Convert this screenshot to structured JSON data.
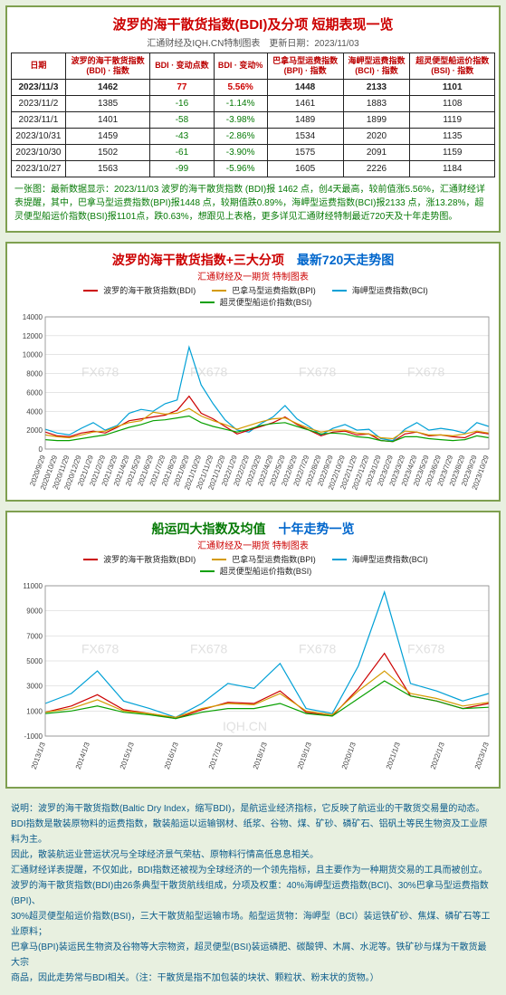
{
  "title_main": "波罗的海干散货指数(BDI)及分项 短期表现一览",
  "subtitle": "汇通财经及IQH.CN特制图表　更新日期：",
  "update_date": "2023/11/03",
  "table": {
    "headers": [
      "日期",
      "波罗的海干散货指数\n(BDI) · 指数",
      "BDI · 变动点数",
      "BDI · 变动%",
      "巴拿马型运费指数\n(BPI) · 指数",
      "海岬型运费指数\n(BCI) · 指数",
      "超灵便型船运价指数\n(BSI) · 指数"
    ],
    "rows": [
      {
        "cells": [
          "2023/11/3",
          "1462",
          "77",
          "5.56%",
          "1448",
          "2133",
          "1101"
        ],
        "bold": true,
        "delta_positive": true
      },
      {
        "cells": [
          "2023/11/2",
          "1385",
          "-16",
          "-1.14%",
          "1461",
          "1883",
          "1108"
        ]
      },
      {
        "cells": [
          "2023/11/1",
          "1401",
          "-58",
          "-3.98%",
          "1489",
          "1899",
          "1119"
        ]
      },
      {
        "cells": [
          "2023/10/31",
          "1459",
          "-43",
          "-2.86%",
          "1534",
          "2020",
          "1135"
        ]
      },
      {
        "cells": [
          "2023/10/30",
          "1502",
          "-61",
          "-3.90%",
          "1575",
          "2091",
          "1159"
        ]
      },
      {
        "cells": [
          "2023/10/27",
          "1563",
          "-99",
          "-5.96%",
          "1605",
          "2226",
          "1184"
        ]
      }
    ]
  },
  "note_text": "一张图：最新数据显示：2023/11/03 波罗的海干散货指数 (BDI)报 1462 点，创4天最高，较前值涨5.56%，汇通财经详表提醒，其中，巴拿马型运费指数(BPI)报1448 点，较期值跌0.89%，海岬型运费指数(BCI)报2133 点，涨13.28%，超灵便型船运价指数(BSI)报1101点，跌0.63%，想跟见上表格，更多详见汇通财经特制最近720天及十年走势图。",
  "chart720": {
    "title_a": "波罗的海干散货指数+三大分项",
    "title_b": "最新720天走势图",
    "sub": "汇通财经及一期货 特制图表",
    "ylim": [
      0,
      14000
    ],
    "ytick_step": 2000,
    "colors": {
      "bdi": "#cc0000",
      "bpi": "#d49a00",
      "bci": "#00a0d6",
      "bsi": "#08a000"
    },
    "series_names": {
      "bdi": "波罗的海干散货指数(BDI)",
      "bpi": "巴拿马型运费指数(BPI)",
      "bci": "海岬型运费指数(BCI)",
      "bsi": "超灵便型船运价指数(BSI)"
    },
    "xlabels": [
      "2020/9/29",
      "2020/10/29",
      "2020/11/29",
      "2020/12/29",
      "2021/1/29",
      "2021/2/29",
      "2021/3/29",
      "2021/4/29",
      "2021/5/29",
      "2021/6/29",
      "2021/7/29",
      "2021/8/29",
      "2021/9/29",
      "2021/10/29",
      "2021/11/29",
      "2021/12/29",
      "2022/1/29",
      "2022/2/29",
      "2022/3/29",
      "2022/4/29",
      "2022/5/29",
      "2022/6/29",
      "2022/7/29",
      "2022/8/29",
      "2022/9/29",
      "2022/10/29",
      "2022/11/29",
      "2022/12/29",
      "2023/1/29",
      "2023/2/29",
      "2023/3/29",
      "2023/4/29",
      "2023/5/29",
      "2023/6/29",
      "2023/7/29",
      "2023/8/29",
      "2023/9/29",
      "2023/10/29"
    ],
    "bci": [
      2100,
      1700,
      1500,
      2200,
      2800,
      2000,
      2500,
      3800,
      4200,
      4000,
      4800,
      5200,
      10800,
      6800,
      4800,
      3100,
      2000,
      1800,
      2700,
      3400,
      4600,
      3200,
      2400,
      1500,
      2200,
      2600,
      2000,
      2100,
      1100,
      900,
      2100,
      2800,
      2000,
      2200,
      2000,
      1700,
      2800,
      2400
    ],
    "bdi": [
      1800,
      1400,
      1300,
      1700,
      1900,
      1700,
      2300,
      3000,
      3200,
      3400,
      3600,
      4100,
      5600,
      3800,
      3200,
      2400,
      1600,
      2000,
      2400,
      2800,
      3400,
      2600,
      2000,
      1400,
      1800,
      1900,
      1500,
      1600,
      900,
      800,
      1600,
      1800,
      1400,
      1500,
      1300,
      1200,
      1800,
      1600
    ],
    "bpi": [
      1500,
      1300,
      1200,
      1500,
      1800,
      1900,
      2400,
      2800,
      3000,
      3900,
      3700,
      3800,
      4300,
      3500,
      3000,
      2600,
      2100,
      2500,
      2900,
      3200,
      3300,
      2700,
      2200,
      1800,
      2000,
      2000,
      1700,
      1600,
      1200,
      1100,
      1900,
      1800,
      1500,
      1500,
      1400,
      1600,
      1900,
      1700
    ],
    "bsi": [
      1000,
      900,
      900,
      1100,
      1300,
      1500,
      1900,
      2300,
      2600,
      3000,
      3100,
      3300,
      3500,
      2800,
      2400,
      2100,
      1800,
      2100,
      2500,
      2700,
      2800,
      2400,
      2000,
      1600,
      1700,
      1600,
      1300,
      1200,
      900,
      800,
      1300,
      1300,
      1100,
      1000,
      900,
      1000,
      1400,
      1200
    ],
    "watermark": "FX678"
  },
  "chart10y": {
    "title_a": "船运四大指数及均值",
    "title_b": "十年走势一览",
    "sub": "汇通财经及一期货 特制图表",
    "ylim": [
      -1000,
      11000
    ],
    "yticks": [
      -1000,
      1000,
      3000,
      5000,
      7000,
      9000,
      11000
    ],
    "xlabels": [
      "2013/1/3",
      "2014/1/3",
      "2015/1/3",
      "2016/1/3",
      "2017/1/3",
      "2018/1/3",
      "2019/1/3",
      "2020/1/3",
      "2021/1/3",
      "2022/1/3",
      "2023/1/3"
    ],
    "colors": {
      "bdi": "#cc0000",
      "bpi": "#d49a00",
      "bci": "#00a0d6",
      "bsi": "#08a000"
    },
    "bci": [
      1600,
      2400,
      4200,
      1800,
      1200,
      500,
      1600,
      3200,
      2800,
      4800,
      1200,
      800,
      4600,
      10500,
      3200,
      2600,
      1800,
      2400
    ],
    "bdi": [
      900,
      1400,
      2300,
      1100,
      800,
      400,
      1100,
      1700,
      1600,
      2600,
      900,
      600,
      2800,
      5600,
      2200,
      1800,
      1200,
      1600
    ],
    "bpi": [
      900,
      1200,
      1900,
      1000,
      800,
      500,
      1200,
      1600,
      1500,
      2400,
      1000,
      700,
      2600,
      4200,
      2400,
      2000,
      1400,
      1700
    ],
    "bsi": [
      800,
      1000,
      1400,
      900,
      700,
      400,
      900,
      1200,
      1200,
      1600,
      800,
      600,
      2000,
      3400,
      2200,
      1800,
      1200,
      1300
    ],
    "watermark": "FX678",
    "wm2": "IQH.CN"
  },
  "description": [
    "说明：波罗的海干散货指数(Baltic Dry Index，缩写BDI)，是航运业经济指标，它反映了航运业的干散货交易量的动态。",
    "BDI指数是散装原物料的运费指数，散装船运以运输钢材、纸浆、谷物、煤、矿砂、磷矿石、铝矾土等民生物资及工业原料为主。",
    "因此，散装航运业营运状况与全球经济景气荣枯、原物料行情高低息息相关。",
    "汇通财经详表提醒，不仅如此，BDI指数还被视为全球经济的一个领先指标，且主要作为一种期货交易的工具而被创立。",
    "波罗的海干散货指数(BDI)由26条典型干散货航线组成，分项及权重：40%海岬型运费指数(BCI)、30%巴拿马型运费指数(BPI)、",
    "30%超灵便型船运价指数(BSI)，三大干散货船型运输市场。船型运货物：海岬型（BCI）装运铁矿砂、焦煤、磷矿石等工业原料；",
    "巴拿马(BPI)装运民生物资及谷物等大宗物资，超灵便型(BSI)装运磷肥、碳酸钾、木屑、水泥等。铁矿砂与煤为干散货最大宗",
    "商品，因此走势常与BDI相关。（注：干散货是指不加包装的块状、颗粒状、粉末状的货物。）"
  ]
}
